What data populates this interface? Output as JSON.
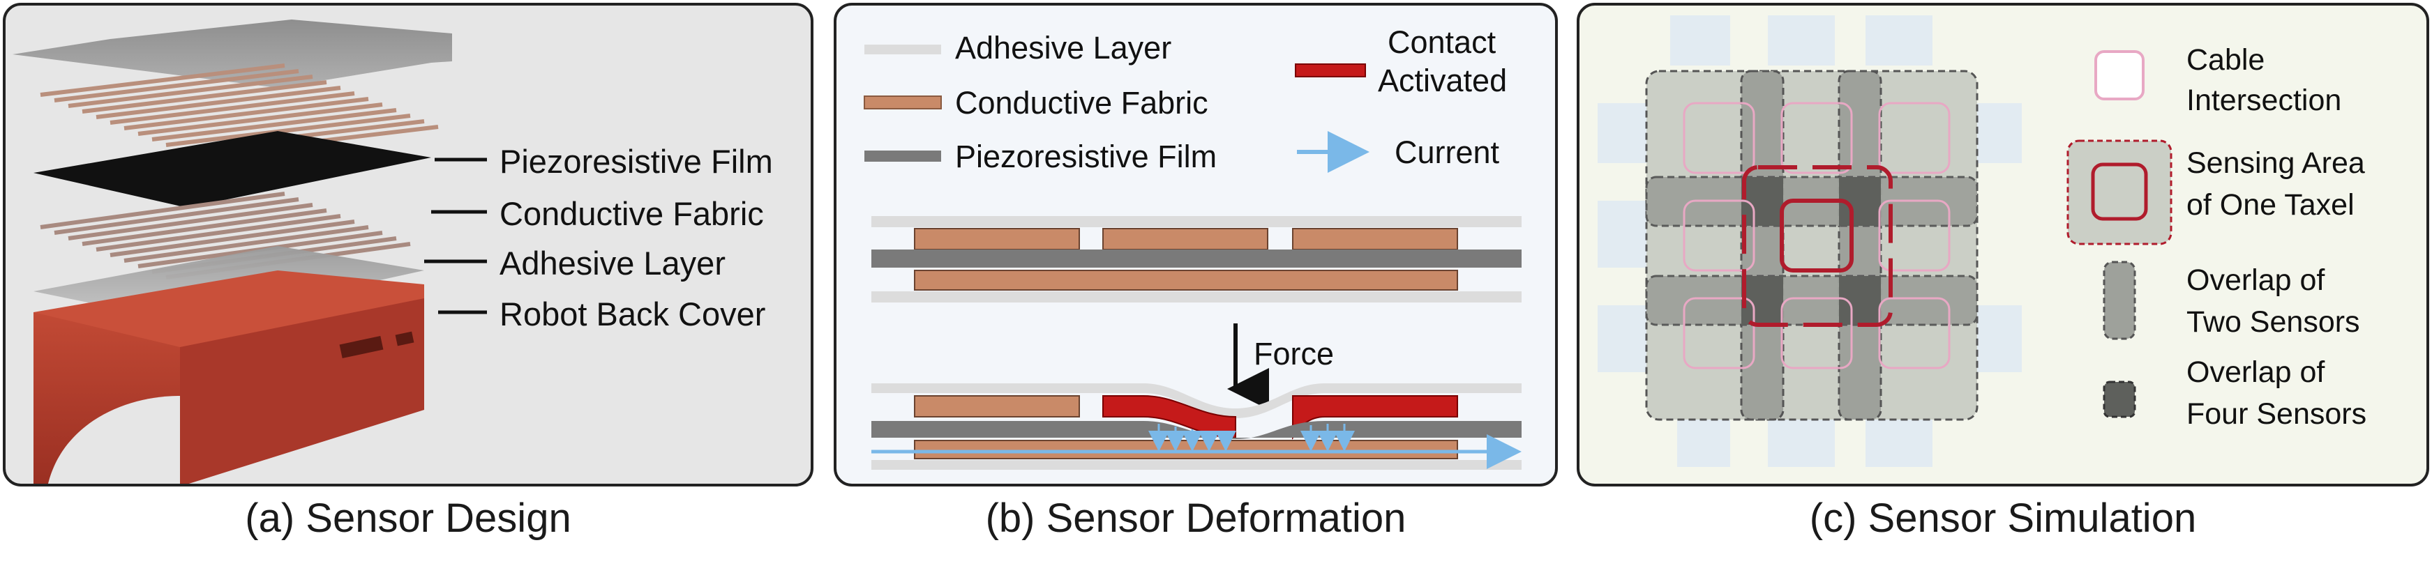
{
  "panel_a": {
    "caption": "(a) Sensor Design",
    "labels": [
      "Piezoresistive Film",
      "Conductive Fabric",
      "Adhesive Layer",
      "Robot Back Cover"
    ]
  },
  "panel_b": {
    "caption": "(b) Sensor Deformation",
    "legend": {
      "adhesive": "Adhesive Layer",
      "fabric": "Conductive Fabric",
      "film": "Piezoresistive Film",
      "contact_line1": "Contact",
      "contact_line2": "Activated",
      "current": "Current"
    },
    "force_label": "Force"
  },
  "panel_c": {
    "caption": "(c) Sensor Simulation",
    "legend": {
      "cable_line1": "Cable",
      "cable_line2": "Intersection",
      "sensing_line1": "Sensing Area",
      "sensing_line2": "of One Taxel",
      "two_line1": "Overlap of",
      "two_line2": "Two Sensors",
      "four_line1": "Overlap of",
      "four_line2": "Four Sensors"
    }
  },
  "colors": {
    "fabric": "#c98a68",
    "film": "#7a7a7a",
    "adhesive": "#dcdcdc",
    "contact": "#c51a1a",
    "current": "#7ab8e8",
    "cover": "#b5402e",
    "taxel_border": "#b01c2c",
    "cable": "#e8a8c4"
  }
}
